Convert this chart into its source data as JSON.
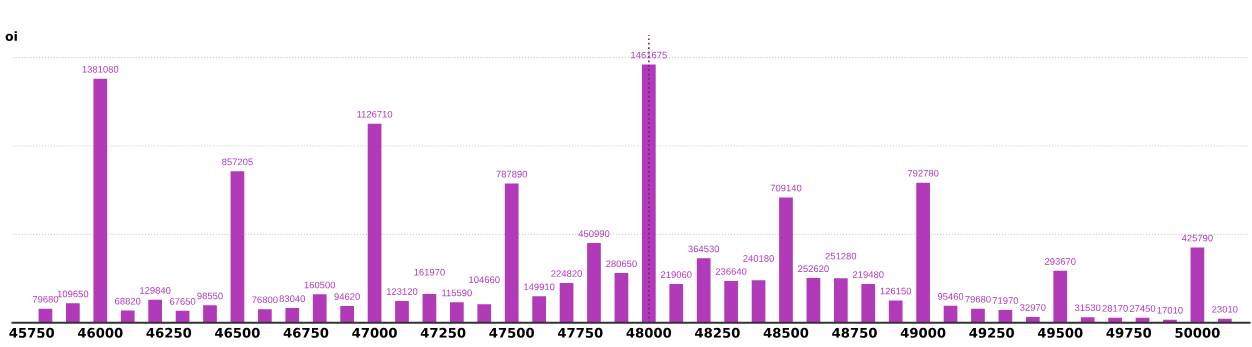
{
  "chart_data": {
    "type": "bar",
    "ylabel": "oi",
    "x": [
      45800,
      45900,
      46000,
      46100,
      46200,
      46300,
      46400,
      46500,
      46600,
      46700,
      46800,
      46900,
      47000,
      47100,
      47200,
      47300,
      47400,
      47500,
      47600,
      47700,
      47800,
      47900,
      48000,
      48100,
      48200,
      48300,
      48400,
      48500,
      48600,
      48700,
      48800,
      48900,
      49000,
      49100,
      49200,
      49300,
      49400,
      49500,
      49600,
      49700,
      49800,
      49900,
      50000,
      50100
    ],
    "values": [
      79680,
      109650,
      1381080,
      68820,
      129840,
      67650,
      98550,
      857205,
      76800,
      83040,
      160500,
      94620,
      1126710,
      123120,
      161970,
      115590,
      104660,
      787890,
      149910,
      224820,
      450990,
      280650,
      1461675,
      219060,
      364530,
      236640,
      240180,
      709140,
      252620,
      251280,
      219480,
      126150,
      792780,
      95460,
      79680,
      71970,
      32970,
      293670,
      31530,
      28170,
      27450,
      17010,
      425790,
      23010
    ],
    "color": "#b03ab8",
    "data_labels": true,
    "xlim": [
      45680,
      50190
    ],
    "xticks": [
      45750,
      46000,
      46250,
      46500,
      46750,
      47000,
      47250,
      47500,
      47750,
      48000,
      48250,
      48500,
      48750,
      49000,
      49250,
      49500,
      49750,
      50000
    ],
    "ylim": [
      0,
      1630000
    ],
    "yticks": [
      {
        "value": 500000,
        "label": null
      },
      {
        "value": 1000000,
        "label": null
      },
      {
        "value": 1500000,
        "label": null
      }
    ],
    "tick_labels": "x",
    "grid": "y",
    "ref_lines": [
      {
        "axis": "x",
        "value": 48000,
        "color": "#7a2080",
        "line_style": "dotted"
      }
    ]
  }
}
